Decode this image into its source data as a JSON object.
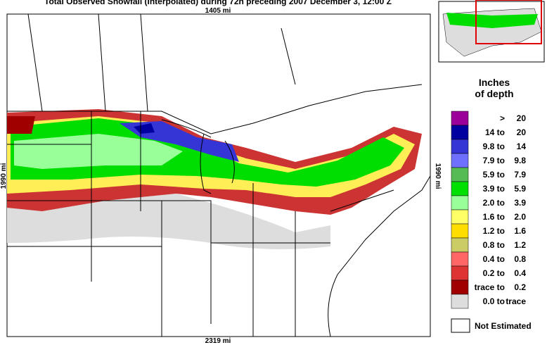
{
  "title": "Total Observed Snowfall (Interpolated) during 72h preceding 2007 December 3, 12:00 Z",
  "map": {
    "top_scale": "1405 mi",
    "bottom_scale": "2319 mi",
    "left_scale": "1990 mi",
    "right_scale": "1990 mi"
  },
  "legend": {
    "title_line1": "Inches",
    "title_line2": "of depth",
    "items": [
      {
        "low": ">",
        "high": "20",
        "color": "#9b009b"
      },
      {
        "low": "14 to",
        "high": "20",
        "color": "#0000a0"
      },
      {
        "low": "9.8 to",
        "high": "14",
        "color": "#3535d5"
      },
      {
        "low": "7.9 to",
        "high": "9.8",
        "color": "#7070ff"
      },
      {
        "low": "5.9 to",
        "high": "7.9",
        "color": "#55bb55"
      },
      {
        "low": "3.9 to",
        "high": "5.9",
        "color": "#00e000"
      },
      {
        "low": "2.0 to",
        "high": "3.9",
        "color": "#99ff99"
      },
      {
        "low": "1.6 to",
        "high": "2.0",
        "color": "#ffff66"
      },
      {
        "low": "1.2 to",
        "high": "1.6",
        "color": "#ffdd00"
      },
      {
        "low": "0.8 to",
        "high": "1.2",
        "color": "#cccc66"
      },
      {
        "low": "0.4 to",
        "high": "0.8",
        "color": "#ff6666"
      },
      {
        "low": "0.2 to",
        "high": "0.4",
        "color": "#dd3333"
      },
      {
        "low": "trace to",
        "high": "0.2",
        "color": "#a00000"
      },
      {
        "low": "0.0 to",
        "high": "trace",
        "color": "#dddddd"
      }
    ],
    "not_estimated": "Not Estimated"
  }
}
